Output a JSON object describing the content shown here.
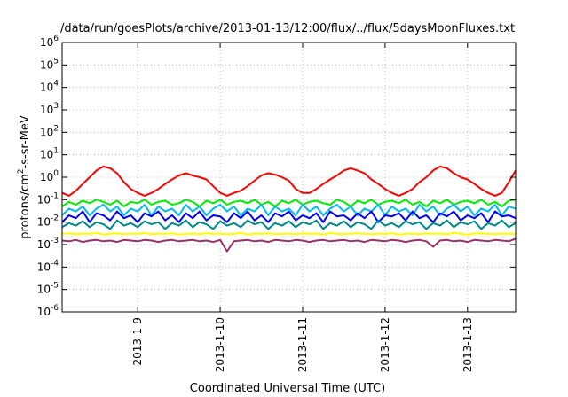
{
  "chart_data": {
    "type": "line",
    "title": "/data/run/goesPlots/archive/2013-01-13/12:00/flux/../flux/5daysMoonFluxes.txt",
    "xlabel": "Coordinated Universal Time (UTC)",
    "ylabel": "protons/cm2-s-sr-MeV",
    "y_scale": "log",
    "ylim": [
      1e-06,
      1000000.0
    ],
    "y_ticks": [
      {
        "value": 1e-06,
        "base": "10",
        "exp": "-6"
      },
      {
        "value": 1e-05,
        "base": "10",
        "exp": "-5"
      },
      {
        "value": 0.0001,
        "base": "10",
        "exp": "-4"
      },
      {
        "value": 0.001,
        "base": "10",
        "exp": "-3"
      },
      {
        "value": 0.01,
        "base": "10",
        "exp": "-2"
      },
      {
        "value": 0.1,
        "base": "10",
        "exp": "-1"
      },
      {
        "value": 1,
        "base": "10",
        "exp": "0"
      },
      {
        "value": 10,
        "base": "10",
        "exp": "1"
      },
      {
        "value": 100,
        "base": "10",
        "exp": "2"
      },
      {
        "value": 1000,
        "base": "10",
        "exp": "3"
      },
      {
        "value": 10000,
        "base": "10",
        "exp": "4"
      },
      {
        "value": 100000,
        "base": "10",
        "exp": "5"
      },
      {
        "value": 1000000,
        "base": "10",
        "exp": "6"
      }
    ],
    "xlim": [
      "2013-01-08 02:00",
      "2013-01-13 14:00"
    ],
    "x_ticks": [
      {
        "value": "2013-01-09 00:00",
        "label": "2013-1-9"
      },
      {
        "value": "2013-01-10 00:00",
        "label": "2013-1-10"
      },
      {
        "value": "2013-01-11 00:00",
        "label": "2013-1-11"
      },
      {
        "value": "2013-01-12 00:00",
        "label": "2013-1-12"
      },
      {
        "value": "2013-01-13 00:00",
        "label": "2013-1-13"
      }
    ],
    "grid": true,
    "legend": "none",
    "x": [
      "2013-01-08 02:00",
      "2013-01-08 04:00",
      "2013-01-08 06:00",
      "2013-01-08 08:00",
      "2013-01-08 10:00",
      "2013-01-08 12:00",
      "2013-01-08 14:00",
      "2013-01-08 16:00",
      "2013-01-08 18:00",
      "2013-01-08 20:00",
      "2013-01-08 22:00",
      "2013-01-09 00:00",
      "2013-01-09 02:00",
      "2013-01-09 04:00",
      "2013-01-09 06:00",
      "2013-01-09 08:00",
      "2013-01-09 10:00",
      "2013-01-09 12:00",
      "2013-01-09 14:00",
      "2013-01-09 16:00",
      "2013-01-09 18:00",
      "2013-01-09 20:00",
      "2013-01-09 22:00",
      "2013-01-10 00:00",
      "2013-01-10 02:00",
      "2013-01-10 04:00",
      "2013-01-10 06:00",
      "2013-01-10 08:00",
      "2013-01-10 10:00",
      "2013-01-10 12:00",
      "2013-01-10 14:00",
      "2013-01-10 16:00",
      "2013-01-10 18:00",
      "2013-01-10 20:00",
      "2013-01-10 22:00",
      "2013-01-11 00:00",
      "2013-01-11 02:00",
      "2013-01-11 04:00",
      "2013-01-11 06:00",
      "2013-01-11 08:00",
      "2013-01-11 10:00",
      "2013-01-11 12:00",
      "2013-01-11 14:00",
      "2013-01-11 16:00",
      "2013-01-11 18:00",
      "2013-01-11 20:00",
      "2013-01-11 22:00",
      "2013-01-12 00:00",
      "2013-01-12 02:00",
      "2013-01-12 04:00",
      "2013-01-12 06:00",
      "2013-01-12 08:00",
      "2013-01-12 10:00",
      "2013-01-12 12:00",
      "2013-01-12 14:00",
      "2013-01-12 16:00",
      "2013-01-12 18:00",
      "2013-01-12 20:00",
      "2013-01-12 22:00",
      "2013-01-13 00:00",
      "2013-01-13 02:00",
      "2013-01-13 04:00",
      "2013-01-13 06:00",
      "2013-01-13 08:00",
      "2013-01-13 10:00",
      "2013-01-13 12:00",
      "2013-01-13 14:00"
    ],
    "series": [
      {
        "color": "#ff0000",
        "values": [
          0.2,
          0.15,
          0.25,
          0.5,
          1.0,
          2.0,
          3.0,
          2.5,
          1.5,
          0.6,
          0.3,
          0.2,
          0.15,
          0.2,
          0.3,
          0.5,
          0.8,
          1.2,
          1.5,
          1.2,
          1.0,
          0.8,
          0.4,
          0.2,
          0.15,
          0.2,
          0.25,
          0.4,
          0.7,
          1.2,
          1.5,
          1.3,
          1.0,
          0.7,
          0.3,
          0.2,
          0.2,
          0.3,
          0.5,
          0.8,
          1.2,
          2.0,
          2.5,
          2.0,
          1.5,
          0.8,
          0.5,
          0.3,
          0.2,
          0.15,
          0.2,
          0.3,
          0.6,
          1.0,
          2.0,
          3.0,
          2.5,
          1.5,
          1.0,
          0.8,
          0.5,
          0.3,
          0.2,
          0.15,
          0.2,
          0.6,
          2.0
        ]
      },
      {
        "color": "#00ee00",
        "values": [
          0.05,
          0.08,
          0.06,
          0.09,
          0.07,
          0.1,
          0.08,
          0.06,
          0.09,
          0.05,
          0.08,
          0.07,
          0.1,
          0.06,
          0.08,
          0.09,
          0.06,
          0.07,
          0.1,
          0.08,
          0.05,
          0.09,
          0.07,
          0.1,
          0.06,
          0.08,
          0.09,
          0.07,
          0.1,
          0.06,
          0.08,
          0.05,
          0.09,
          0.07,
          0.1,
          0.06,
          0.08,
          0.09,
          0.07,
          0.06,
          0.1,
          0.08,
          0.05,
          0.09,
          0.07,
          0.1,
          0.06,
          0.08,
          0.09,
          0.07,
          0.1,
          0.06,
          0.08,
          0.05,
          0.09,
          0.07,
          0.1,
          0.06,
          0.08,
          0.09,
          0.07,
          0.1,
          0.06,
          0.08,
          0.05,
          0.09,
          0.1
        ]
      },
      {
        "color": "#00bbee",
        "values": [
          0.02,
          0.04,
          0.03,
          0.05,
          0.02,
          0.04,
          0.06,
          0.03,
          0.05,
          0.02,
          0.04,
          0.03,
          0.06,
          0.02,
          0.05,
          0.03,
          0.04,
          0.02,
          0.06,
          0.03,
          0.05,
          0.02,
          0.04,
          0.06,
          0.03,
          0.05,
          0.02,
          0.04,
          0.03,
          0.06,
          0.02,
          0.05,
          0.03,
          0.04,
          0.02,
          0.06,
          0.03,
          0.05,
          0.02,
          0.04,
          0.06,
          0.03,
          0.05,
          0.02,
          0.04,
          0.03,
          0.06,
          0.02,
          0.05,
          0.03,
          0.04,
          0.02,
          0.06,
          0.03,
          0.05,
          0.02,
          0.04,
          0.06,
          0.03,
          0.05,
          0.02,
          0.04,
          0.03,
          0.06,
          0.02,
          0.05,
          0.04
        ]
      },
      {
        "color": "#0000ff",
        "values": [
          0.01,
          0.02,
          0.015,
          0.03,
          0.01,
          0.025,
          0.02,
          0.012,
          0.03,
          0.015,
          0.02,
          0.01,
          0.025,
          0.018,
          0.03,
          0.012,
          0.02,
          0.01,
          0.025,
          0.015,
          0.03,
          0.012,
          0.02,
          0.018,
          0.01,
          0.025,
          0.015,
          0.03,
          0.012,
          0.02,
          0.01,
          0.025,
          0.018,
          0.03,
          0.012,
          0.02,
          0.015,
          0.025,
          0.01,
          0.03,
          0.018,
          0.02,
          0.012,
          0.025,
          0.015,
          0.03,
          0.01,
          0.02,
          0.018,
          0.025,
          0.012,
          0.03,
          0.015,
          0.02,
          0.01,
          0.025,
          0.018,
          0.03,
          0.012,
          0.02,
          0.015,
          0.025,
          0.01,
          0.03,
          0.018,
          0.02,
          0.015
        ]
      },
      {
        "color": "#008888",
        "values": [
          0.006,
          0.009,
          0.007,
          0.011,
          0.006,
          0.01,
          0.008,
          0.005,
          0.012,
          0.007,
          0.009,
          0.006,
          0.011,
          0.008,
          0.01,
          0.005,
          0.009,
          0.007,
          0.012,
          0.006,
          0.01,
          0.008,
          0.005,
          0.011,
          0.007,
          0.009,
          0.006,
          0.012,
          0.008,
          0.01,
          0.005,
          0.009,
          0.007,
          0.011,
          0.006,
          0.01,
          0.008,
          0.012,
          0.005,
          0.009,
          0.007,
          0.011,
          0.006,
          0.01,
          0.008,
          0.005,
          0.012,
          0.007,
          0.009,
          0.006,
          0.011,
          0.008,
          0.01,
          0.005,
          0.009,
          0.007,
          0.012,
          0.006,
          0.01,
          0.008,
          0.011,
          0.005,
          0.009,
          0.007,
          0.012,
          0.006,
          0.009
        ]
      },
      {
        "color": "#ffff00",
        "values": [
          0.003,
          0.0032,
          0.0029,
          0.0031,
          0.003,
          0.0033,
          0.0028,
          0.003,
          0.0032,
          0.0029,
          0.0031,
          0.003,
          0.0033,
          0.0029,
          0.0031,
          0.003,
          0.0032,
          0.0028,
          0.003,
          0.0031,
          0.0029,
          0.0032,
          0.003,
          0.0031,
          0.0029,
          0.003,
          0.0033,
          0.0028,
          0.0031,
          0.003,
          0.0032,
          0.0029,
          0.003,
          0.0031,
          0.0029,
          0.0032,
          0.003,
          0.0031,
          0.0028,
          0.0033,
          0.003,
          0.0029,
          0.0031,
          0.0032,
          0.003,
          0.0029,
          0.0031,
          0.003,
          0.0032,
          0.0028,
          0.003,
          0.0031,
          0.0029,
          0.0032,
          0.003,
          0.0031,
          0.0029,
          0.0033,
          0.003,
          0.0028,
          0.0031,
          0.0032,
          0.003,
          0.0029,
          0.0031,
          0.003,
          0.003
        ]
      },
      {
        "color": "#993366",
        "values": [
          0.0015,
          0.0014,
          0.0016,
          0.0013,
          0.0015,
          0.0016,
          0.0014,
          0.0015,
          0.0013,
          0.0016,
          0.0015,
          0.0014,
          0.0016,
          0.0015,
          0.0013,
          0.0015,
          0.0016,
          0.0014,
          0.0015,
          0.0016,
          0.0014,
          0.0015,
          0.0013,
          0.0016,
          0.0005,
          0.0014,
          0.0015,
          0.0016,
          0.0014,
          0.0015,
          0.0013,
          0.0016,
          0.0015,
          0.0014,
          0.0016,
          0.0015,
          0.0013,
          0.0015,
          0.0016,
          0.0014,
          0.0015,
          0.0016,
          0.0014,
          0.0015,
          0.0013,
          0.0016,
          0.0015,
          0.0014,
          0.0016,
          0.0015,
          0.0013,
          0.0015,
          0.0016,
          0.0014,
          0.0008,
          0.0015,
          0.0016,
          0.0014,
          0.0015,
          0.0013,
          0.0016,
          0.0015,
          0.0014,
          0.0016,
          0.0015,
          0.0014,
          0.0018
        ]
      }
    ]
  }
}
